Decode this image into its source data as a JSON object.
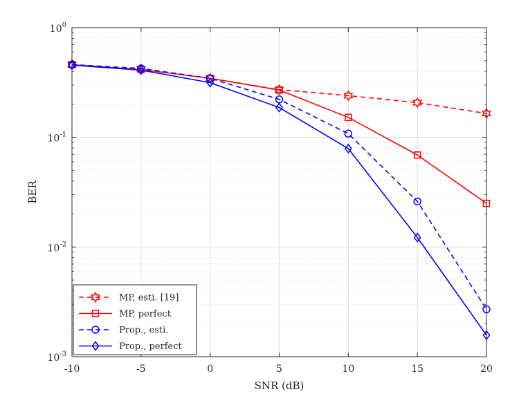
{
  "chart_data": {
    "type": "line",
    "title": "",
    "xlabel": "SNR (dB)",
    "ylabel": "BER",
    "xlim": [
      -10,
      20
    ],
    "ylim": [
      0.001,
      1
    ],
    "yscale": "log",
    "grid": true,
    "legend_position": "bottom-left",
    "x": [
      -10,
      -5,
      0,
      5,
      10,
      15,
      20
    ],
    "x_tick_labels": [
      "-10",
      "-5",
      "0",
      "5",
      "10",
      "15",
      "20"
    ],
    "y_tick_labels": [
      {
        "base": "10",
        "exp": "0",
        "value": 1
      },
      {
        "base": "10",
        "exp": "-1",
        "value": 0.1
      },
      {
        "base": "10",
        "exp": "-2",
        "value": 0.01
      },
      {
        "base": "10",
        "exp": "-3",
        "value": 0.001
      }
    ],
    "series": [
      {
        "name": "MP, esti. [19]",
        "values": [
          0.46,
          0.42,
          0.345,
          0.272,
          0.24,
          0.207,
          0.165
        ],
        "color": "#ff0000",
        "dash": "dashed",
        "marker": "hexagram"
      },
      {
        "name": "MP, perfect",
        "values": [
          0.46,
          0.415,
          0.345,
          0.27,
          0.152,
          0.069,
          0.025
        ],
        "color": "#ff0000",
        "dash": "solid",
        "marker": "square"
      },
      {
        "name": "Prop., esti.",
        "values": [
          0.46,
          0.425,
          0.345,
          0.222,
          0.108,
          0.026,
          0.0027
        ],
        "color": "#0000ff",
        "dash": "dashed",
        "marker": "circle"
      },
      {
        "name": "Prop., perfect",
        "values": [
          0.455,
          0.41,
          0.315,
          0.187,
          0.079,
          0.0122,
          0.00157
        ],
        "color": "#0000ff",
        "dash": "solid",
        "marker": "diamond"
      }
    ]
  }
}
